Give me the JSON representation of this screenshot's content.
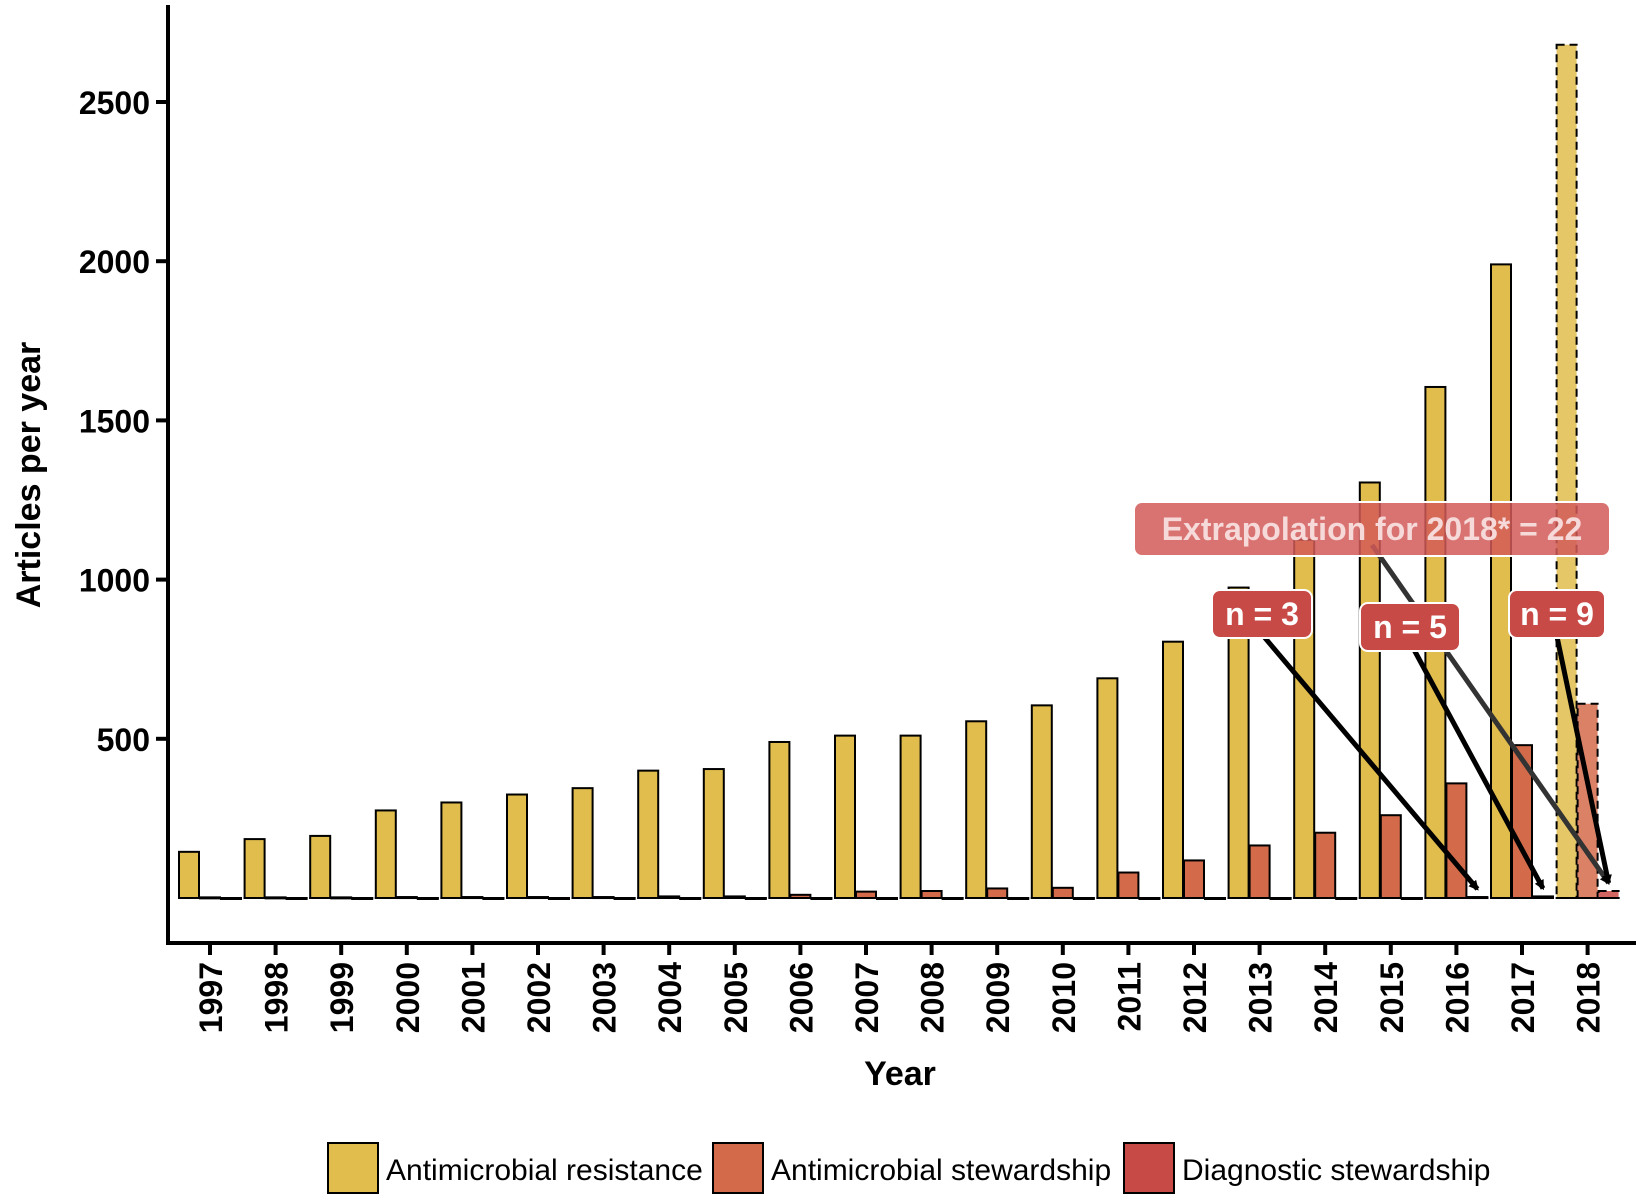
{
  "chart_data": {
    "type": "bar",
    "xlabel": "Year",
    "ylabel": "Articles per year",
    "ylim": [
      0,
      2800
    ],
    "yticks": [
      500,
      1000,
      1500,
      2000,
      2500
    ],
    "grid": false,
    "legend_position": "bottom",
    "categories": [
      "1997",
      "1998",
      "1999",
      "2000",
      "2001",
      "2002",
      "2003",
      "2004",
      "2005",
      "2006",
      "2007",
      "2008",
      "2009",
      "2010",
      "2011",
      "2012",
      "2013",
      "2014",
      "2015",
      "2016",
      "2017",
      "2018"
    ],
    "series": [
      {
        "name": "Antimicrobial resistance",
        "color": "#e0bd4c",
        "values": [
          145,
          185,
          195,
          275,
          300,
          325,
          345,
          400,
          405,
          490,
          510,
          510,
          555,
          605,
          690,
          805,
          975,
          1125,
          1305,
          1605,
          1990,
          2680
        ]
      },
      {
        "name": "Antimicrobial stewardship",
        "color": "#d36b4b",
        "values": [
          2,
          2,
          2,
          3,
          3,
          3,
          3,
          5,
          5,
          10,
          20,
          22,
          30,
          32,
          80,
          118,
          165,
          205,
          260,
          360,
          480,
          610
        ]
      },
      {
        "name": "Diagnostic stewardship",
        "color": "#c84a47",
        "values": [
          0,
          0,
          0,
          0,
          0,
          0,
          0,
          0,
          0,
          0,
          0,
          0,
          0,
          0,
          0,
          0,
          0,
          0,
          0,
          3,
          5,
          22
        ]
      }
    ],
    "extrapolated_category": "2018",
    "annotations": [
      {
        "text": "Extrapolation for 2018* = 22",
        "target": "2018"
      },
      {
        "text": "n = 3",
        "target": "2016"
      },
      {
        "text": "n = 5",
        "target": "2017"
      },
      {
        "text": "n = 9",
        "target": "2018"
      }
    ]
  }
}
